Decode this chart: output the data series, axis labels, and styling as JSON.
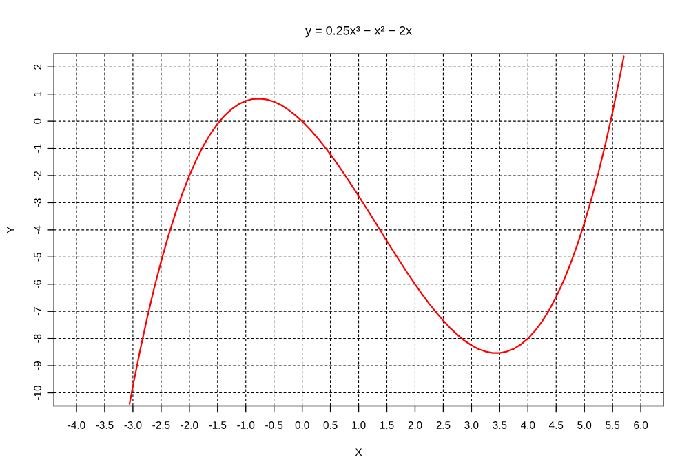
{
  "chart_data": {
    "type": "line",
    "title": "y = 0.25x³ − x² − 2x",
    "xlabel": "X",
    "ylabel": "Y",
    "x": [
      -3.06,
      -3.0,
      -2.875,
      -2.75,
      -2.625,
      -2.5,
      -2.375,
      -2.25,
      -2.125,
      -2.0,
      -1.875,
      -1.75,
      -1.625,
      -1.5,
      -1.375,
      -1.25,
      -1.125,
      -1.0,
      -0.875,
      -0.75,
      -0.625,
      -0.5,
      -0.375,
      -0.25,
      -0.125,
      0,
      0.125,
      0.25,
      0.375,
      0.5,
      0.625,
      0.75,
      0.875,
      1.0,
      1.125,
      1.25,
      1.375,
      1.5,
      1.625,
      1.75,
      1.875,
      2.0,
      2.125,
      2.25,
      2.375,
      2.5,
      2.625,
      2.75,
      2.875,
      3.0,
      3.125,
      3.25,
      3.375,
      3.5,
      3.625,
      3.75,
      3.875,
      4.0,
      4.125,
      4.25,
      4.375,
      4.5,
      4.625,
      4.75,
      4.875,
      5.0,
      5.125,
      5.25,
      5.375,
      5.5,
      5.625,
      5.7
    ],
    "series": [
      {
        "color": "#ff0000",
        "values": [
          -10.41,
          -9.75,
          -8.46,
          -7.26,
          -6.16,
          -5.16,
          -4.24,
          -3.41,
          -2.67,
          -2.0,
          -1.41,
          -0.9,
          -0.46,
          -0.09,
          0.21,
          0.45,
          0.63,
          0.75,
          0.82,
          0.83,
          0.8,
          0.72,
          0.6,
          0.43,
          0.23,
          0,
          -0.27,
          -0.56,
          -0.88,
          -1.22,
          -1.58,
          -1.96,
          -2.35,
          -2.75,
          -3.16,
          -3.57,
          -3.99,
          -4.41,
          -4.82,
          -5.22,
          -5.62,
          -6.0,
          -6.37,
          -6.72,
          -7.04,
          -7.34,
          -7.62,
          -7.86,
          -8.08,
          -8.25,
          -8.39,
          -8.48,
          -8.53,
          -8.53,
          -8.48,
          -8.38,
          -8.22,
          -8.0,
          -7.72,
          -7.37,
          -6.96,
          -6.47,
          -5.91,
          -5.27,
          -4.55,
          -3.75,
          -2.86,
          -1.89,
          -0.82,
          0.34,
          1.6,
          2.4
        ]
      }
    ],
    "xlim": [
      -4.4,
      6.4
    ],
    "ylim": [
      -10.48,
      2.48
    ],
    "xticks": [
      {
        "value": -4,
        "label": "-4.0"
      },
      {
        "value": -3.5,
        "label": "-3.5"
      },
      {
        "value": -3,
        "label": "-3.0"
      },
      {
        "value": -2.5,
        "label": "-2.5"
      },
      {
        "value": -2,
        "label": "-2.0"
      },
      {
        "value": -1.5,
        "label": "-1.5"
      },
      {
        "value": -1,
        "label": "-1.0"
      },
      {
        "value": -0.5,
        "label": "-0.5"
      },
      {
        "value": 0,
        "label": "0.0"
      },
      {
        "value": 0.5,
        "label": "0.5"
      },
      {
        "value": 1,
        "label": "1.0"
      },
      {
        "value": 1.5,
        "label": "1.5"
      },
      {
        "value": 2,
        "label": "2.0"
      },
      {
        "value": 2.5,
        "label": "2.5"
      },
      {
        "value": 3,
        "label": "3.0"
      },
      {
        "value": 3.5,
        "label": "3.5"
      },
      {
        "value": 4,
        "label": "4.0"
      },
      {
        "value": 4.5,
        "label": "4.5"
      },
      {
        "value": 5,
        "label": "5.0"
      },
      {
        "value": 5.5,
        "label": "5.5"
      },
      {
        "value": 6,
        "label": "6.0"
      }
    ],
    "yticks": [
      -10,
      -9,
      -8,
      -7,
      -6,
      -5,
      -4,
      -3,
      -2,
      -1,
      0,
      1,
      2
    ],
    "grid": true,
    "marker": "none",
    "line_style": "solid"
  }
}
